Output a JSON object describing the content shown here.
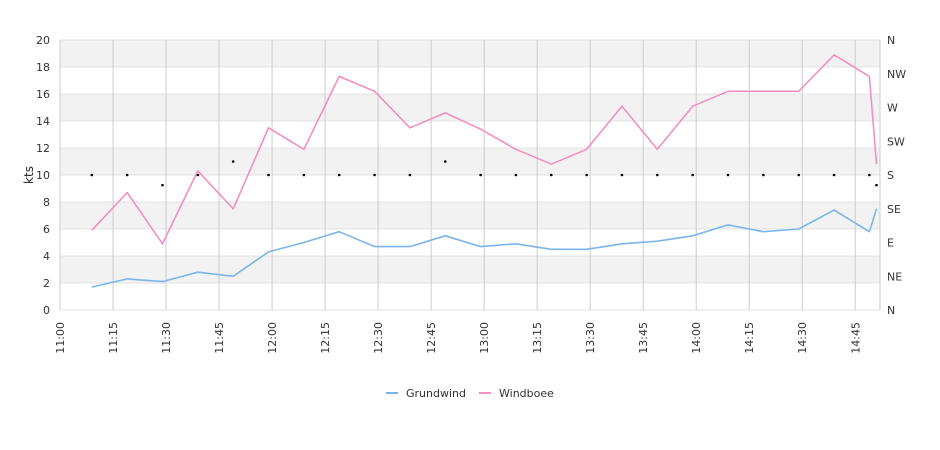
{
  "chart_data": {
    "type": "line",
    "title": "",
    "xlabel": "",
    "ylabel": "kts",
    "ylim": [
      0,
      20
    ],
    "y_ticks": [
      "0",
      "2",
      "4",
      "6",
      "8",
      "10",
      "12",
      "14",
      "16",
      "18",
      "20"
    ],
    "x_range": [
      "11:00",
      "14:52"
    ],
    "x_tick_labels": [
      "11:00",
      "11:15",
      "11:30",
      "11:45",
      "12:00",
      "12:15",
      "12:30",
      "12:45",
      "13:00",
      "13:15",
      "13:30",
      "13:45",
      "14:00",
      "14:15",
      "14:30",
      "14:45"
    ],
    "right_axis": {
      "label": "",
      "ticks": [
        "N",
        "NE",
        "E",
        "SE",
        "S",
        "SW",
        "W",
        "NW",
        "N"
      ]
    },
    "grid": true,
    "legend_position": "bottom",
    "x": [
      "11:09",
      "11:19",
      "11:29",
      "11:39",
      "11:49",
      "11:59",
      "12:09",
      "12:19",
      "12:29",
      "12:39",
      "12:49",
      "12:59",
      "13:09",
      "13:19",
      "13:29",
      "13:39",
      "13:49",
      "13:59",
      "14:09",
      "14:19",
      "14:29",
      "14:39",
      "14:49",
      "14:51"
    ],
    "series": [
      {
        "name": "Grundwind",
        "color": "#7cb5ec",
        "values": [
          1.7,
          2.3,
          2.1,
          2.8,
          2.5,
          4.3,
          5.0,
          5.8,
          4.7,
          4.7,
          5.5,
          4.7,
          4.9,
          4.5,
          4.5,
          4.9,
          5.1,
          5.5,
          6.3,
          5.8,
          6.0,
          7.4,
          5.8,
          7.5
        ]
      },
      {
        "name": "Windboee",
        "color": "#f48fbf",
        "values": [
          5.9,
          8.7,
          4.9,
          10.3,
          7.5,
          13.5,
          11.9,
          17.3,
          16.2,
          13.5,
          14.6,
          13.4,
          11.9,
          10.8,
          11.9,
          15.1,
          11.9,
          15.1,
          16.2,
          16.2,
          16.2,
          18.9,
          17.3,
          10.8
        ]
      }
    ],
    "direction_points": {
      "unit": "direction",
      "color": "#000000",
      "x": [
        "11:09",
        "11:19",
        "11:29",
        "11:39",
        "11:49",
        "11:59",
        "12:09",
        "12:19",
        "12:29",
        "12:39",
        "12:49",
        "12:59",
        "13:09",
        "13:19",
        "13:29",
        "13:39",
        "13:49",
        "13:59",
        "14:09",
        "14:19",
        "14:29",
        "14:39",
        "14:49",
        "14:51"
      ],
      "values": [
        4.0,
        4.0,
        3.7,
        4.0,
        4.4,
        4.0,
        4.0,
        4.0,
        4.0,
        4.0,
        4.4,
        4.0,
        4.0,
        4.0,
        4.0,
        4.0,
        4.0,
        4.0,
        4.0,
        4.0,
        4.0,
        4.0,
        4.0,
        3.7
      ]
    }
  }
}
